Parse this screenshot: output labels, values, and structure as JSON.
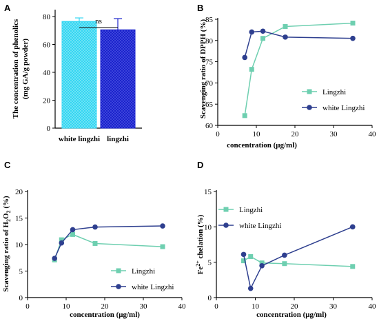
{
  "colors": {
    "lingzhi_line": "#6ecfb0",
    "lingzhi_marker": "#6ecfb0",
    "white_line": "#2e3f8f",
    "white_marker": "#2e3f8f",
    "bar_white": "#33d6f2",
    "bar_lingzhi": "#1a22cc"
  },
  "chart_data": [
    {
      "panel": "A",
      "type": "bar",
      "ylabel": "The concentration of phenolics (mg GA/g powder)",
      "ylabel_lines": [
        "The concentration of phenolics",
        "(mg GA/g powder)"
      ],
      "categories": [
        "white lingzhi",
        "lingzhi"
      ],
      "values": [
        76.5,
        70.5
      ],
      "errors": [
        2.5,
        8.0
      ],
      "ylim": [
        0,
        80
      ],
      "yticks": [
        0,
        20,
        40,
        60,
        80
      ],
      "significance": "ns"
    },
    {
      "panel": "B",
      "type": "line",
      "xlabel": "concentration (μg/ml)",
      "ylabel": "Scavenging ratio of DPPH (%)",
      "xlim": [
        0,
        40
      ],
      "ylim": [
        60,
        85
      ],
      "xticks": [
        0,
        10,
        20,
        30,
        40
      ],
      "yticks": [
        60,
        65,
        70,
        75,
        80,
        85
      ],
      "legend_position": "bottom-right",
      "series": [
        {
          "name": "Lingzhi",
          "marker": "square",
          "x": [
            7,
            8.8,
            11.7,
            17.5,
            35
          ],
          "y": [
            62.3,
            73.2,
            80.5,
            83.3,
            84.1
          ]
        },
        {
          "name": "white Lingzhi",
          "marker": "circle",
          "x": [
            7,
            8.8,
            11.7,
            17.5,
            35
          ],
          "y": [
            76,
            82,
            82.2,
            80.8,
            80.5
          ]
        }
      ]
    },
    {
      "panel": "C",
      "type": "line",
      "xlabel": "concentration (μg/ml)",
      "ylabel": "Scavenging ratio of H2O2 (%)",
      "ylabel_parts": {
        "before": "Scavenging ratio of H",
        "sub1": "2",
        "mid": "O",
        "sub2": "2",
        "after": " (%)"
      },
      "xlim": [
        0,
        40
      ],
      "ylim": [
        0,
        20
      ],
      "xticks": [
        0,
        10,
        20,
        30,
        40
      ],
      "yticks": [
        0,
        5,
        10,
        15,
        20
      ],
      "legend_position": "bottom-right",
      "series": [
        {
          "name": "Lingzhi",
          "marker": "square",
          "x": [
            7,
            8.8,
            11.7,
            17.5,
            35
          ],
          "y": [
            7.1,
            10.9,
            11.9,
            10.2,
            9.6
          ]
        },
        {
          "name": "white Lingzhi",
          "marker": "circle",
          "x": [
            7,
            8.8,
            11.7,
            17.5,
            35
          ],
          "y": [
            7.4,
            10.3,
            12.8,
            13.3,
            13.5
          ]
        }
      ]
    },
    {
      "panel": "D",
      "type": "line",
      "xlabel": "concentration (μg/ml)",
      "ylabel": "Fe2+ chelation (%)",
      "ylabel_parts": {
        "before": "Fe",
        "sup": "2+",
        "after": " chelation (%)"
      },
      "xlim": [
        0,
        40
      ],
      "ylim": [
        0,
        15
      ],
      "xticks": [
        0,
        10,
        20,
        30,
        40
      ],
      "yticks": [
        0,
        5,
        10,
        15
      ],
      "legend_position": "top-left",
      "series": [
        {
          "name": "Lingzhi",
          "marker": "square",
          "x": [
            7,
            8.8,
            11.7,
            17.5,
            35
          ],
          "y": [
            5.2,
            5.8,
            4.9,
            4.8,
            4.4
          ]
        },
        {
          "name": "white Lingzhi",
          "marker": "circle",
          "x": [
            7,
            8.8,
            11.7,
            17.5,
            35
          ],
          "y": [
            6.1,
            1.3,
            4.5,
            6.0,
            10.0
          ]
        }
      ]
    }
  ]
}
